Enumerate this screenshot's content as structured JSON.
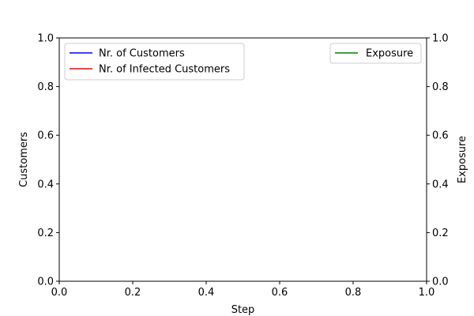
{
  "chart_data": {
    "type": "line",
    "title": "",
    "xlabel": "Step",
    "ylabel": "Customers",
    "y2label": "Exposure",
    "xlim": [
      0.0,
      1.0
    ],
    "ylim": [
      0.0,
      1.0
    ],
    "y2lim": [
      0.0,
      1.0
    ],
    "x_ticks": [
      "0.0",
      "0.2",
      "0.4",
      "0.6",
      "0.8",
      "1.0"
    ],
    "y_ticks": [
      "0.0",
      "0.2",
      "0.4",
      "0.6",
      "0.8",
      "1.0"
    ],
    "y2_ticks": [
      "0.0",
      "0.2",
      "0.4",
      "0.6",
      "0.8",
      "1.0"
    ],
    "grid": false,
    "series": [
      {
        "name": "Nr. of Customers",
        "axis": "left",
        "color": "#0000ff",
        "x": [],
        "y": []
      },
      {
        "name": "Nr. of Infected Customers",
        "axis": "left",
        "color": "#ff0000",
        "x": [],
        "y": []
      },
      {
        "name": "Exposure",
        "axis": "right",
        "color": "#008000",
        "x": [],
        "y": []
      }
    ],
    "legends": [
      {
        "placement": "upper-left",
        "entries": [
          "Nr. of Customers",
          "Nr. of Infected Customers"
        ]
      },
      {
        "placement": "upper-right",
        "entries": [
          "Exposure"
        ]
      }
    ]
  }
}
